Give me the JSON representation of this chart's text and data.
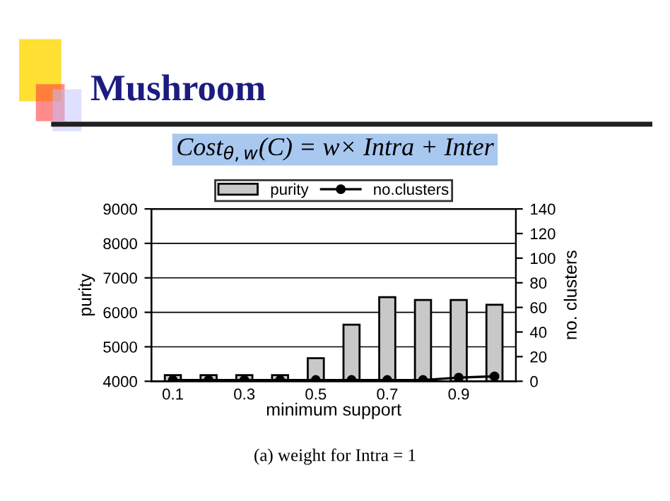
{
  "chart_data": {
    "type": "bar",
    "title": "Mushroom",
    "subtitle": "Cost$_{θ,w}$(C) = w× Intra + Inter",
    "xlabel": "minimum support",
    "ylabel": "purity",
    "y2label": "no. clusters",
    "annotations": [
      "(a) weight for Intra = 1"
    ],
    "categories": [
      "0.1",
      null,
      "0.3",
      null,
      "0.5",
      null,
      "0.7",
      null,
      "0.9",
      null
    ],
    "series": [
      {
        "name": "purity",
        "color": "#c8c8c8",
        "values": [
          4180,
          4180,
          4180,
          4180,
          4670,
          5640,
          6440,
          6360,
          6360,
          6220
        ]
      },
      {
        "name": "no.clusters",
        "type": "line",
        "axis": "y2",
        "color": "#000000",
        "marker": "circle",
        "values": [
          1,
          1,
          1,
          1,
          1,
          1,
          1,
          1,
          3,
          4
        ]
      }
    ],
    "ylim": [
      4000,
      9000
    ],
    "yticks": [
      4000,
      5000,
      6000,
      7000,
      8000,
      9000
    ],
    "y2lim": [
      0,
      140
    ],
    "y2ticks": [
      0,
      20,
      40,
      60,
      80,
      100,
      120,
      140
    ],
    "grid": "y",
    "legend": "top"
  }
}
